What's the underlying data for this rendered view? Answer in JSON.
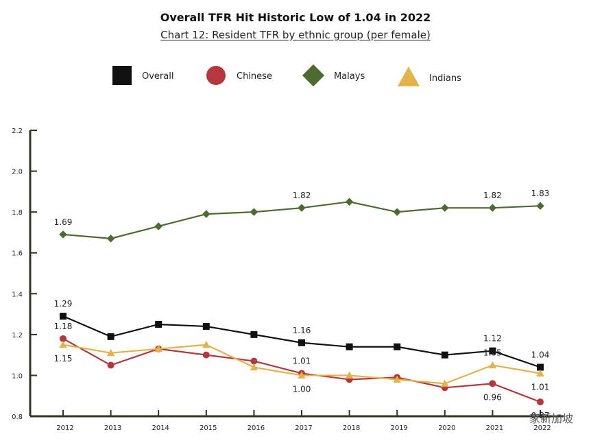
{
  "chart_data": {
    "type": "line",
    "title": "Overall TFR Hit Historic Low of 1.04 in 2022",
    "subtitle": "Chart 12: Resident TFR by ethnic group (per female)",
    "xlabel": "",
    "ylabel": "",
    "categories": [
      "2012",
      "2013",
      "2014",
      "2015",
      "2016",
      "2017",
      "2018",
      "2019",
      "2020",
      "2021",
      "2022"
    ],
    "ylim": [
      0.8,
      2.2
    ],
    "yticks": [
      "0.8",
      "1.0",
      "1.2",
      "1.4",
      "1.6",
      "1.8",
      "2.0",
      "2.2"
    ],
    "grid": false,
    "legend_position": "top",
    "series": [
      {
        "name": "Overall",
        "marker": "square",
        "color": "#111111",
        "values": [
          1.29,
          1.19,
          1.25,
          1.24,
          1.2,
          1.16,
          1.14,
          1.14,
          1.1,
          1.12,
          1.04
        ],
        "labels": [
          {
            "index": 0,
            "text": "1.29",
            "position": "above"
          },
          {
            "index": 5,
            "text": "1.16",
            "position": "above"
          },
          {
            "index": 9,
            "text": "1.12",
            "position": "above"
          },
          {
            "index": 10,
            "text": "1.04",
            "position": "above"
          }
        ]
      },
      {
        "name": "Chinese",
        "marker": "circle",
        "color": "#b5363c",
        "values": [
          1.18,
          1.05,
          1.13,
          1.1,
          1.07,
          1.01,
          0.98,
          0.99,
          0.94,
          0.96,
          0.87
        ],
        "labels": [
          {
            "index": 0,
            "text": "1.18",
            "position": "above"
          },
          {
            "index": 5,
            "text": "1.01",
            "position": "above"
          },
          {
            "index": 9,
            "text": "0.96",
            "position": "below"
          },
          {
            "index": 10,
            "text": "0.87",
            "position": "below"
          }
        ]
      },
      {
        "name": "Malays",
        "marker": "diamond",
        "color": "#4f6a31",
        "values": [
          1.69,
          1.67,
          1.73,
          1.79,
          1.8,
          1.82,
          1.85,
          1.8,
          1.82,
          1.82,
          1.83
        ],
        "labels": [
          {
            "index": 0,
            "text": "1.69",
            "position": "above"
          },
          {
            "index": 5,
            "text": "1.82",
            "position": "above"
          },
          {
            "index": 9,
            "text": "1.82",
            "position": "above"
          },
          {
            "index": 10,
            "text": "1.83",
            "position": "above"
          }
        ]
      },
      {
        "name": "Indians",
        "marker": "triangle",
        "color": "#e4b24a",
        "values": [
          1.15,
          1.11,
          1.13,
          1.15,
          1.04,
          1.0,
          1.0,
          0.98,
          0.96,
          1.05,
          1.01
        ],
        "labels": [
          {
            "index": 0,
            "text": "1.15",
            "position": "below"
          },
          {
            "index": 5,
            "text": "1.00",
            "position": "below"
          },
          {
            "index": 9,
            "text": "1.05",
            "position": "above"
          },
          {
            "index": 10,
            "text": "1.01",
            "position": "below"
          }
        ]
      }
    ]
  },
  "watermark": "家新加坡"
}
